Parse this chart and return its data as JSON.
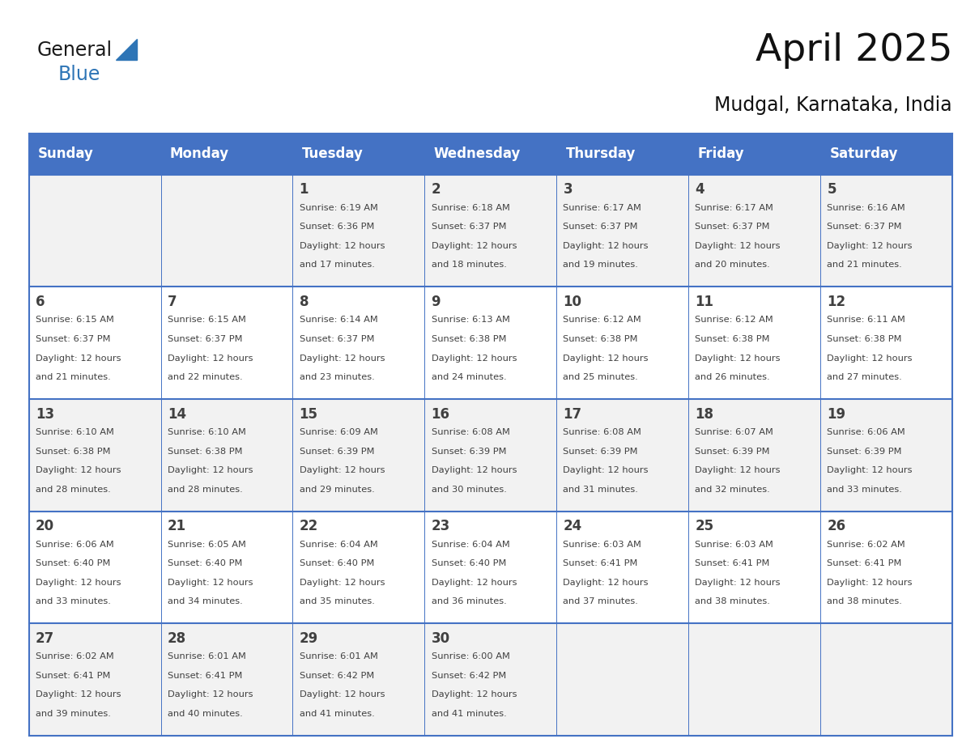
{
  "title": "April 2025",
  "subtitle": "Mudgal, Karnataka, India",
  "header_color": "#4472C4",
  "header_text_color": "#FFFFFF",
  "days_of_week": [
    "Sunday",
    "Monday",
    "Tuesday",
    "Wednesday",
    "Thursday",
    "Friday",
    "Saturday"
  ],
  "background_color": "#FFFFFF",
  "cell_bg_even": "#F2F2F2",
  "cell_bg_odd": "#FFFFFF",
  "grid_color": "#4472C4",
  "text_color": "#404040",
  "calendar_data": [
    [
      {
        "day": "",
        "sunrise": "",
        "sunset": "",
        "daylight": ""
      },
      {
        "day": "",
        "sunrise": "",
        "sunset": "",
        "daylight": ""
      },
      {
        "day": "1",
        "sunrise": "6:19 AM",
        "sunset": "6:36 PM",
        "daylight": "17 minutes."
      },
      {
        "day": "2",
        "sunrise": "6:18 AM",
        "sunset": "6:37 PM",
        "daylight": "18 minutes."
      },
      {
        "day": "3",
        "sunrise": "6:17 AM",
        "sunset": "6:37 PM",
        "daylight": "19 minutes."
      },
      {
        "day": "4",
        "sunrise": "6:17 AM",
        "sunset": "6:37 PM",
        "daylight": "20 minutes."
      },
      {
        "day": "5",
        "sunrise": "6:16 AM",
        "sunset": "6:37 PM",
        "daylight": "21 minutes."
      }
    ],
    [
      {
        "day": "6",
        "sunrise": "6:15 AM",
        "sunset": "6:37 PM",
        "daylight": "21 minutes."
      },
      {
        "day": "7",
        "sunrise": "6:15 AM",
        "sunset": "6:37 PM",
        "daylight": "22 minutes."
      },
      {
        "day": "8",
        "sunrise": "6:14 AM",
        "sunset": "6:37 PM",
        "daylight": "23 minutes."
      },
      {
        "day": "9",
        "sunrise": "6:13 AM",
        "sunset": "6:38 PM",
        "daylight": "24 minutes."
      },
      {
        "day": "10",
        "sunrise": "6:12 AM",
        "sunset": "6:38 PM",
        "daylight": "25 minutes."
      },
      {
        "day": "11",
        "sunrise": "6:12 AM",
        "sunset": "6:38 PM",
        "daylight": "26 minutes."
      },
      {
        "day": "12",
        "sunrise": "6:11 AM",
        "sunset": "6:38 PM",
        "daylight": "27 minutes."
      }
    ],
    [
      {
        "day": "13",
        "sunrise": "6:10 AM",
        "sunset": "6:38 PM",
        "daylight": "28 minutes."
      },
      {
        "day": "14",
        "sunrise": "6:10 AM",
        "sunset": "6:38 PM",
        "daylight": "28 minutes."
      },
      {
        "day": "15",
        "sunrise": "6:09 AM",
        "sunset": "6:39 PM",
        "daylight": "29 minutes."
      },
      {
        "day": "16",
        "sunrise": "6:08 AM",
        "sunset": "6:39 PM",
        "daylight": "30 minutes."
      },
      {
        "day": "17",
        "sunrise": "6:08 AM",
        "sunset": "6:39 PM",
        "daylight": "31 minutes."
      },
      {
        "day": "18",
        "sunrise": "6:07 AM",
        "sunset": "6:39 PM",
        "daylight": "32 minutes."
      },
      {
        "day": "19",
        "sunrise": "6:06 AM",
        "sunset": "6:39 PM",
        "daylight": "33 minutes."
      }
    ],
    [
      {
        "day": "20",
        "sunrise": "6:06 AM",
        "sunset": "6:40 PM",
        "daylight": "33 minutes."
      },
      {
        "day": "21",
        "sunrise": "6:05 AM",
        "sunset": "6:40 PM",
        "daylight": "34 minutes."
      },
      {
        "day": "22",
        "sunrise": "6:04 AM",
        "sunset": "6:40 PM",
        "daylight": "35 minutes."
      },
      {
        "day": "23",
        "sunrise": "6:04 AM",
        "sunset": "6:40 PM",
        "daylight": "36 minutes."
      },
      {
        "day": "24",
        "sunrise": "6:03 AM",
        "sunset": "6:41 PM",
        "daylight": "37 minutes."
      },
      {
        "day": "25",
        "sunrise": "6:03 AM",
        "sunset": "6:41 PM",
        "daylight": "38 minutes."
      },
      {
        "day": "26",
        "sunrise": "6:02 AM",
        "sunset": "6:41 PM",
        "daylight": "38 minutes."
      }
    ],
    [
      {
        "day": "27",
        "sunrise": "6:02 AM",
        "sunset": "6:41 PM",
        "daylight": "39 minutes."
      },
      {
        "day": "28",
        "sunrise": "6:01 AM",
        "sunset": "6:41 PM",
        "daylight": "40 minutes."
      },
      {
        "day": "29",
        "sunrise": "6:01 AM",
        "sunset": "6:42 PM",
        "daylight": "41 minutes."
      },
      {
        "day": "30",
        "sunrise": "6:00 AM",
        "sunset": "6:42 PM",
        "daylight": "41 minutes."
      },
      {
        "day": "",
        "sunrise": "",
        "sunset": "",
        "daylight": ""
      },
      {
        "day": "",
        "sunrise": "",
        "sunset": "",
        "daylight": ""
      },
      {
        "day": "",
        "sunrise": "",
        "sunset": "",
        "daylight": ""
      }
    ]
  ],
  "logo_color_general": "#1a1a1a",
  "logo_color_blue": "#2e75b6",
  "logo_triangle_color": "#2e75b6"
}
